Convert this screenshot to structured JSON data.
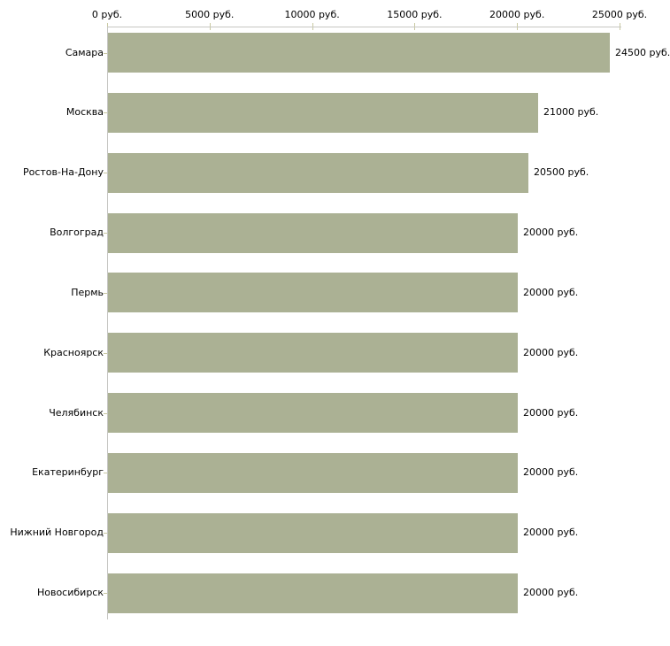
{
  "chart_data": {
    "type": "bar",
    "orientation": "horizontal",
    "title": "",
    "xlabel": "",
    "ylabel": "",
    "unit": "руб.",
    "categories": [
      "Самара",
      "Москва",
      "Ростов-На-Дону",
      "Волгоград",
      "Пермь",
      "Красноярск",
      "Челябинск",
      "Екатеринбург",
      "Нижний Новгород",
      "Новосибирск"
    ],
    "values": [
      24500,
      21000,
      20500,
      20000,
      20000,
      20000,
      20000,
      20000,
      20000,
      20000
    ],
    "value_labels": [
      "24500 руб.",
      "21000 руб.",
      "20500 руб.",
      "20000 руб.",
      "20000 руб.",
      "20000 руб.",
      "20000 руб.",
      "20000 руб.",
      "20000 руб.",
      "20000 руб."
    ],
    "x_ticks": {
      "values": [
        0,
        5000,
        10000,
        15000,
        20000,
        25000
      ],
      "labels": [
        "0 руб.",
        "5000 руб.",
        "10000 руб.",
        "15000 руб.",
        "20000 руб.",
        "25000 руб."
      ]
    },
    "xlim": [
      0,
      25000
    ],
    "grid": false,
    "legend": false,
    "colors": {
      "bar": "#abb194",
      "axis": "#c6c6c2",
      "tick": "#c9c9a1",
      "text": "#000000",
      "background": "#ffffff"
    }
  }
}
